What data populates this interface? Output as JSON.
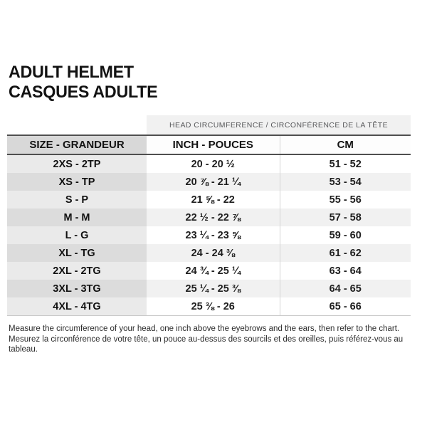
{
  "title": {
    "line1": "ADULT HELMET",
    "line2": "CASQUES ADULTE"
  },
  "banner": "HEAD CIRCUMFERENCE / CIRCONFÉRENCE DE LA TÊTE",
  "chart_data": {
    "type": "table",
    "title": "ADULT HELMET / CASQUES ADULTE",
    "banner": "HEAD CIRCUMFERENCE / CIRCONFÉRENCE DE LA TÊTE",
    "columns": [
      "SIZE - GRANDEUR",
      "INCH - POUCES",
      "CM"
    ],
    "rows": [
      [
        "2XS - 2TP",
        "20 - 20 ½",
        "51 - 52"
      ],
      [
        "XS - TP",
        "20 ⅞ - 21 ¼",
        "53 - 54"
      ],
      [
        "S - P",
        "21 ⅝ - 22",
        "55 - 56"
      ],
      [
        "M - M",
        "22 ½ - 22 ⅞",
        "57 - 58"
      ],
      [
        "L - G",
        "23 ¼ - 23 ⅝",
        "59 - 60"
      ],
      [
        "XL - TG",
        "24 - 24 ⅜",
        "61 - 62"
      ],
      [
        "2XL - 2TG",
        "24 ¾ - 25 ¼",
        "63 - 64"
      ],
      [
        "3XL - 3TG",
        "25 ¼ - 25 ⅜",
        "64 - 65"
      ],
      [
        "4XL - 4TG",
        "25 ⅜ - 26",
        "65 - 66"
      ]
    ]
  },
  "footer": {
    "line1": "Measure the circumference of your head, one inch above the eyebrows and the ears, then refer to the chart.",
    "line2": "Mesurez la circonférence de votre tête, un pouce au-dessus des sourcils et des oreilles, puis référez-vous au tableau."
  },
  "colors": {
    "header_rule": "#4f4f4f",
    "size_header_bg": "#d8d8d8",
    "size_cell_odd_bg": "#eaeaea",
    "size_cell_even_bg": "#dcdcdc",
    "data_cell_odd_bg": "#ffffff",
    "data_cell_even_bg": "#f1f1f1",
    "banner_bg": "#f1f1f1",
    "banner_text": "#58595b"
  }
}
